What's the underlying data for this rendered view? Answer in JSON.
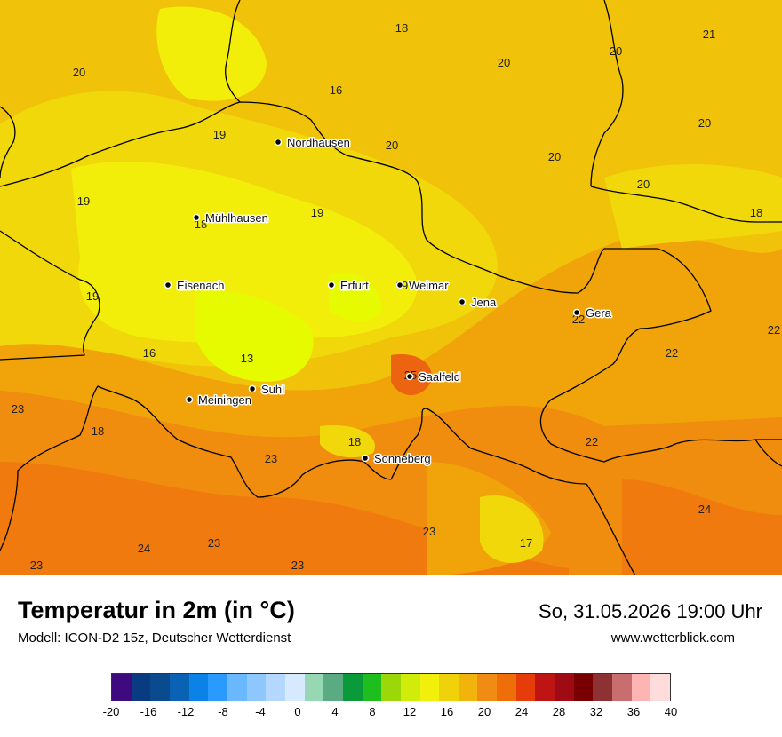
{
  "map": {
    "values": [
      {
        "text": "18"
      },
      {
        "text": "21"
      },
      {
        "text": "20"
      },
      {
        "text": "20"
      },
      {
        "text": "20"
      },
      {
        "text": "16"
      },
      {
        "text": "19"
      },
      {
        "text": "20"
      },
      {
        "text": "20"
      },
      {
        "text": "20"
      },
      {
        "text": "20"
      },
      {
        "text": "19"
      },
      {
        "text": "19"
      },
      {
        "text": "18"
      },
      {
        "text": "18"
      },
      {
        "text": "19"
      },
      {
        "text": "19"
      },
      {
        "text": "22"
      },
      {
        "text": "22"
      },
      {
        "text": "16"
      },
      {
        "text": "13"
      },
      {
        "text": "22"
      },
      {
        "text": "25"
      },
      {
        "text": "23"
      },
      {
        "text": "18"
      },
      {
        "text": "18"
      },
      {
        "text": "23"
      },
      {
        "text": "22"
      },
      {
        "text": "24"
      },
      {
        "text": "23"
      },
      {
        "text": "24"
      },
      {
        "text": "23"
      },
      {
        "text": "17"
      },
      {
        "text": "23"
      },
      {
        "text": "23"
      }
    ],
    "cities": [
      {
        "name": "Nordhausen"
      },
      {
        "name": "Mühlhausen"
      },
      {
        "name": "Eisenach"
      },
      {
        "name": "Erfurt"
      },
      {
        "name": "Weimar"
      },
      {
        "name": "Jena"
      },
      {
        "name": "Gera"
      },
      {
        "name": "Saalfeld"
      },
      {
        "name": "Suhl"
      },
      {
        "name": "Meiningen"
      },
      {
        "name": "Sonneberg"
      }
    ]
  },
  "footer": {
    "title": "Temperatur in 2m (in °C)",
    "model": "Modell: ICON-D2 15z, Deutscher Wetterdienst",
    "datetime": "So, 31.05.2026 19:00 Uhr",
    "website": "www.wetterblick.com"
  },
  "legend": {
    "colors": [
      "#3d0a80",
      "#0a3a80",
      "#0a4a8f",
      "#0a62b4",
      "#0a82e6",
      "#2a9aff",
      "#6ab8ff",
      "#8ec8ff",
      "#b4d8ff",
      "#d8eaff",
      "#96d8b4",
      "#5aaa82",
      "#0a9a3a",
      "#1ebe1e",
      "#9ad80a",
      "#d2ec0a",
      "#f0f00a",
      "#f0d20a",
      "#f0b40a",
      "#f08c14",
      "#f06e0a",
      "#e63c0a",
      "#be1414",
      "#a00a14",
      "#780000",
      "#8c3232",
      "#c86e6e",
      "#ffb4b4",
      "#ffdcdc"
    ],
    "ticks": [
      "-20",
      "-16",
      "-12",
      "-8",
      "-4",
      "0",
      "4",
      "8",
      "12",
      "16",
      "20",
      "24",
      "28",
      "32",
      "36",
      "40"
    ]
  },
  "palette": {
    "t13": "#e6fa00",
    "t16": "#f2ee0a",
    "t18": "#f0d80a",
    "t20": "#f0c20a",
    "t22": "#f0a40a",
    "t23": "#f08c0e",
    "t24": "#f07a0e",
    "t25": "#ec6410",
    "border": "#000000"
  }
}
